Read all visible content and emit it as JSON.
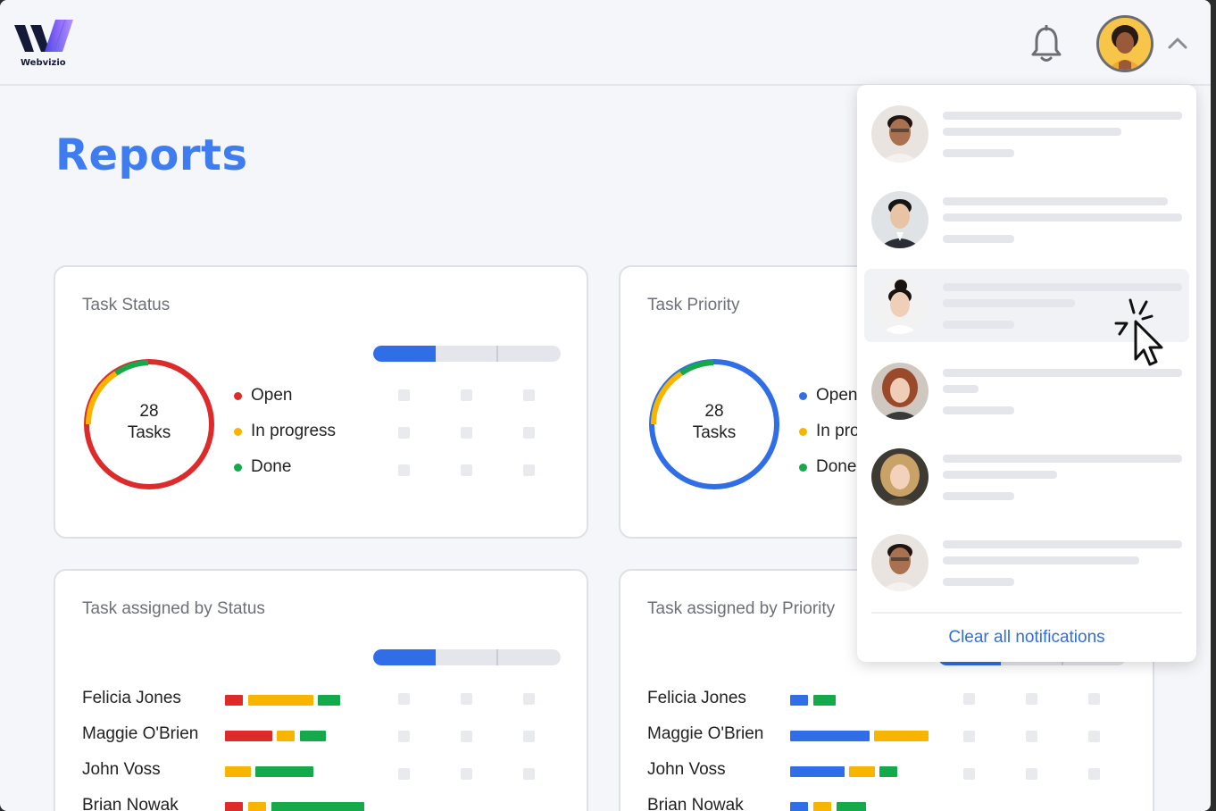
{
  "app": {
    "name": "Webvizio",
    "brand_color": "#3f7cf0"
  },
  "header": {
    "logo_text": "Webvizio",
    "icons": [
      "bell-icon",
      "user-avatar",
      "chevron-up-icon"
    ]
  },
  "page": {
    "title": "Reports"
  },
  "cards": {
    "task_status": {
      "title": "Task Status",
      "donut_count": "28",
      "donut_unit": "Tasks",
      "legend": [
        {
          "label": "Open",
          "color": "#dd2a2a"
        },
        {
          "label": "In progress",
          "color": "#f7b500"
        },
        {
          "label": "Done",
          "color": "#14a94a"
        }
      ]
    },
    "task_priority": {
      "title": "Task Priority",
      "donut_count": "28",
      "donut_unit": "Tasks",
      "legend": [
        {
          "label": "Open",
          "color": "#2f6ee6"
        },
        {
          "label": "In progress",
          "color": "#f7b500"
        },
        {
          "label": "Done",
          "color": "#14a94a"
        }
      ]
    },
    "assigned_by_status": {
      "title": "Task assigned by Status",
      "people": [
        "Felicia Jones",
        "Maggie O'Brien",
        "John Voss",
        "Brian Nowak"
      ]
    },
    "assigned_by_priority": {
      "title": "Task assigned by Priority",
      "people": [
        "Felicia Jones",
        "Maggie O'Brien",
        "John Voss",
        "Brian Nowak"
      ]
    }
  },
  "notifications": {
    "count_shown": 6,
    "hovered_index": 2,
    "clear_all_label": "Clear all notifications"
  },
  "colors": {
    "red": "#dd2a2a",
    "yellow": "#f7b500",
    "green": "#14a94a",
    "blue": "#2f6ee6"
  }
}
